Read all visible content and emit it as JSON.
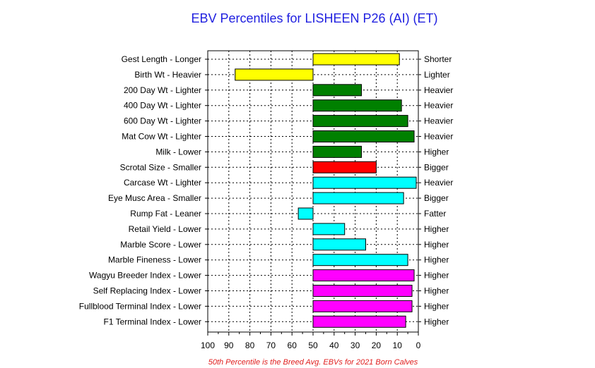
{
  "chart_data": {
    "type": "bar",
    "title": "EBV Percentiles for LISHEEN P26 (AI) (ET)",
    "footnote": "50th Percentile is the Breed Avg. EBVs for 2021 Born Calves",
    "xlim": [
      100,
      0
    ],
    "x_ticks": [
      "100",
      "90",
      "80",
      "70",
      "60",
      "50",
      "40",
      "30",
      "20",
      "10",
      "0"
    ],
    "grid": true,
    "baseline": 50,
    "traits": [
      {
        "left": "Gest Length - Longer",
        "right": "Shorter",
        "value": 9,
        "color": "#ffff00"
      },
      {
        "left": "Birth Wt - Heavier",
        "right": "Lighter",
        "value": 87,
        "color": "#ffff00"
      },
      {
        "left": "200 Day Wt - Lighter",
        "right": "Heavier",
        "value": 27,
        "color": "#008000"
      },
      {
        "left": "400 Day Wt - Lighter",
        "right": "Heavier",
        "value": 8,
        "color": "#008000"
      },
      {
        "left": "600 Day Wt - Lighter",
        "right": "Heavier",
        "value": 5,
        "color": "#008000"
      },
      {
        "left": "Mat Cow Wt - Lighter",
        "right": "Heavier",
        "value": 2,
        "color": "#008000"
      },
      {
        "left": "Milk - Lower",
        "right": "Higher",
        "value": 27,
        "color": "#008000"
      },
      {
        "left": "Scrotal Size - Smaller",
        "right": "Bigger",
        "value": 20,
        "color": "#ff0000"
      },
      {
        "left": "Carcase Wt - Lighter",
        "right": "Heavier",
        "value": 1,
        "color": "#00ffff"
      },
      {
        "left": "Eye Musc Area - Smaller",
        "right": "Bigger",
        "value": 7,
        "color": "#00ffff"
      },
      {
        "left": "Rump Fat - Leaner",
        "right": "Fatter",
        "value": 57,
        "color": "#00ffff"
      },
      {
        "left": "Retail Yield - Lower",
        "right": "Higher",
        "value": 35,
        "color": "#00ffff"
      },
      {
        "left": "Marble Score - Lower",
        "right": "Higher",
        "value": 25,
        "color": "#00ffff"
      },
      {
        "left": "Marble Fineness - Lower",
        "right": "Higher",
        "value": 5,
        "color": "#00ffff"
      },
      {
        "left": "Wagyu Breeder Index - Lower",
        "right": "Higher",
        "value": 2,
        "color": "#ff00ff"
      },
      {
        "left": "Self Replacing Index - Lower",
        "right": "Higher",
        "value": 3,
        "color": "#ff00ff"
      },
      {
        "left": "Fullblood Terminal Index - Lower",
        "right": "Higher",
        "value": 3,
        "color": "#ff00ff"
      },
      {
        "left": "F1 Terminal Index - Lower",
        "right": "Higher",
        "value": 6,
        "color": "#ff00ff"
      }
    ]
  }
}
